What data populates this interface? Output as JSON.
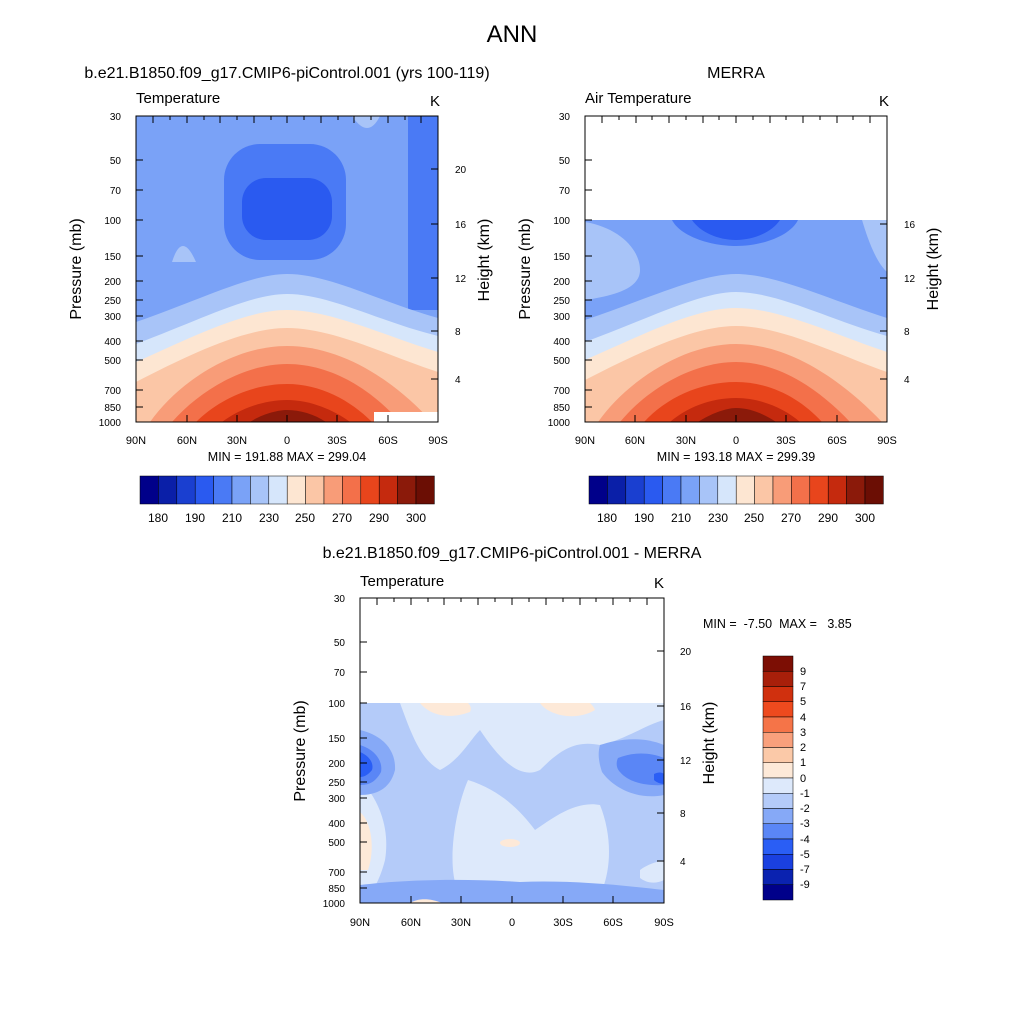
{
  "page_title": "ANN",
  "chart_data": [
    {
      "type": "heatmap",
      "title": "b.e21.B1850.f09_g17.CMIP6-piControl.001 (yrs 100-119)",
      "variable_label": "Temperature",
      "units": "K",
      "xlabel": "",
      "ylabel": "Pressure (mb)",
      "right_axis_label": "Height (km)",
      "x_ticks": [
        "90N",
        "60N",
        "30N",
        "0",
        "30S",
        "60S",
        "90S"
      ],
      "x_range": [
        90,
        -90
      ],
      "y_ticks": [
        30,
        50,
        70,
        100,
        150,
        200,
        250,
        300,
        400,
        500,
        700,
        850,
        1000
      ],
      "y_range": [
        1000,
        30
      ],
      "y_scale": "log",
      "right_ticks": [
        4,
        8,
        12,
        16,
        20
      ],
      "data_top_pressure": 30,
      "stats_text": "MIN = 191.88  MAX = 299.04",
      "min": 191.88,
      "max": 299.04,
      "colorbar": {
        "orientation": "horizontal",
        "levels": [
          180,
          190,
          200,
          210,
          220,
          230,
          240,
          250,
          260,
          270,
          280,
          290,
          300
        ],
        "tick_labels": [
          "180",
          "190",
          "210",
          "230",
          "250",
          "270",
          "290",
          "300"
        ],
        "colors": [
          "#00008a",
          "#0a1fa8",
          "#1a3fd0",
          "#2a5af0",
          "#4a7af5",
          "#7aa2f7",
          "#a8c4f8",
          "#d6e6fb",
          "#fde6d2",
          "#fbc6a6",
          "#f89c78",
          "#f3704a",
          "#e8451c",
          "#c52a0e",
          "#8b1a0a",
          "#6b0e04"
        ]
      }
    },
    {
      "type": "heatmap",
      "title": "MERRA",
      "variable_label": "Air Temperature",
      "units": "K",
      "xlabel": "",
      "ylabel": "Pressure (mb)",
      "right_axis_label": "Height (km)",
      "x_ticks": [
        "90N",
        "60N",
        "30N",
        "0",
        "30S",
        "60S",
        "90S"
      ],
      "x_range": [
        90,
        -90
      ],
      "y_ticks": [
        30,
        50,
        70,
        100,
        150,
        200,
        250,
        300,
        400,
        500,
        700,
        850,
        1000
      ],
      "y_range": [
        1000,
        30
      ],
      "y_scale": "log",
      "right_ticks": [
        4,
        8,
        12,
        16
      ],
      "data_top_pressure": 100,
      "stats_text": "MIN = 193.18  MAX = 299.39",
      "min": 193.18,
      "max": 299.39,
      "colorbar": {
        "orientation": "horizontal",
        "levels": [
          180,
          190,
          200,
          210,
          220,
          230,
          240,
          250,
          260,
          270,
          280,
          290,
          300
        ],
        "tick_labels": [
          "180",
          "190",
          "210",
          "230",
          "250",
          "270",
          "290",
          "300"
        ],
        "colors": [
          "#00008a",
          "#0a1fa8",
          "#1a3fd0",
          "#2a5af0",
          "#4a7af5",
          "#7aa2f7",
          "#a8c4f8",
          "#d6e6fb",
          "#fde6d2",
          "#fbc6a6",
          "#f89c78",
          "#f3704a",
          "#e8451c",
          "#c52a0e",
          "#8b1a0a",
          "#6b0e04"
        ]
      }
    },
    {
      "type": "heatmap",
      "title": "b.e21.B1850.f09_g17.CMIP6-piControl.001 - MERRA",
      "variable_label": "Temperature",
      "units": "K",
      "xlabel": "",
      "ylabel": "Pressure (mb)",
      "right_axis_label": "Height (km)",
      "x_ticks": [
        "90N",
        "60N",
        "30N",
        "0",
        "30S",
        "60S",
        "90S"
      ],
      "x_range": [
        90,
        -90
      ],
      "y_ticks": [
        30,
        50,
        70,
        100,
        150,
        200,
        250,
        300,
        400,
        500,
        700,
        850,
        1000
      ],
      "y_range": [
        1000,
        30
      ],
      "y_scale": "log",
      "right_ticks": [
        4,
        8,
        12,
        16,
        20
      ],
      "data_top_pressure": 100,
      "stats_text": "MIN =  -7.50  MAX =   3.85",
      "min": -7.5,
      "max": 3.85,
      "colorbar": {
        "orientation": "vertical",
        "levels": [
          -9,
          -7,
          -5,
          -4,
          -3,
          -2,
          -1,
          0,
          1,
          2,
          3,
          4,
          5,
          7,
          9
        ],
        "tick_labels": [
          "9",
          "7",
          "5",
          "4",
          "3",
          "2",
          "1",
          "0",
          "-1",
          "-2",
          "-3",
          "-4",
          "-5",
          "-7",
          "-9"
        ],
        "colors": [
          "#00008a",
          "#0a22b0",
          "#1a40e0",
          "#2a5ef5",
          "#5a86f6",
          "#86a9f7",
          "#b4cbf9",
          "#dde9fb",
          "#fde9d8",
          "#fbc9a8",
          "#f9a07c",
          "#f57448",
          "#ee4a1e",
          "#d0300e",
          "#a81f0a",
          "#7c0e04"
        ]
      }
    }
  ]
}
